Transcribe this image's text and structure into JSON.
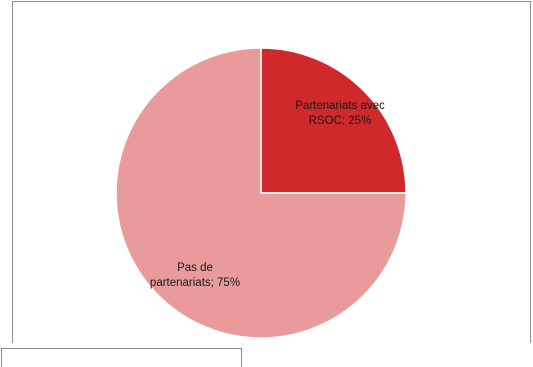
{
  "chart_data": {
    "type": "pie",
    "title": "",
    "slices": [
      {
        "name": "Partenariats avec RSOC",
        "value": 25,
        "label_lines": [
          "Partenariats avec",
          "RSOC; 25%"
        ],
        "color": "#d0292c"
      },
      {
        "name": "Pas de partenariats",
        "value": 75,
        "label_lines": [
          "Pas de",
          "partenariats; 75%"
        ],
        "color": "#e89b9a"
      }
    ],
    "start_angle": "12 o'clock",
    "direction": "clockwise",
    "legend": "none",
    "slice_border_color": "#ffffff"
  }
}
